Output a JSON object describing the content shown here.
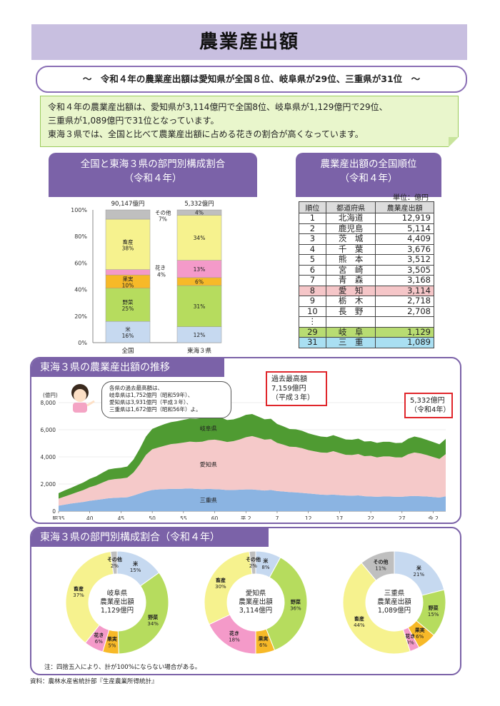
{
  "title": "農業産出額",
  "subtitle": "～　令和４年の農業産出額は愛知県が全国８位、岐阜県が29位、三重県が31位　～",
  "summary": {
    "line1": "令和４年の農業産出額は、愛知県が3,114億円で全国8位、岐阜県が1,129億円で29位、",
    "line2": "三重県が1,089億円で31位となっています。",
    "line3": "東海３県では、全国と比べて農業産出額に占める花きの割合が高くなっています。"
  },
  "sections": {
    "composition_title": "全国と東海３県の部門別構成割合",
    "composition_sub": "（令和４年）",
    "ranking_title": "農業産出額の全国順位",
    "ranking_sub": "（令和４年）",
    "trend_title": "東海３県の農業産出額の推移",
    "pies_title": "東海３県の部門別構成割合（令和４年）"
  },
  "ranking": {
    "unit": "単位：億円",
    "headers": [
      "順位",
      "都道府県",
      "農業産出額"
    ],
    "rows": [
      {
        "rank": "1",
        "pref": "北海道",
        "value": "12,919"
      },
      {
        "rank": "2",
        "pref": "鹿児島",
        "value": "5,114"
      },
      {
        "rank": "3",
        "pref": "茨　城",
        "value": "4,409"
      },
      {
        "rank": "4",
        "pref": "千　葉",
        "value": "3,676"
      },
      {
        "rank": "5",
        "pref": "熊　本",
        "value": "3,512"
      },
      {
        "rank": "6",
        "pref": "宮　崎",
        "value": "3,505"
      },
      {
        "rank": "7",
        "pref": "青　森",
        "value": "3,168"
      },
      {
        "rank": "8",
        "pref": "愛　知",
        "value": "3,114"
      },
      {
        "rank": "9",
        "pref": "栃　木",
        "value": "2,718"
      },
      {
        "rank": "10",
        "pref": "長　野",
        "value": "2,708"
      },
      {
        "rank": "⋮",
        "pref": "",
        "value": ""
      },
      {
        "rank": "29",
        "pref": "岐　阜",
        "value": "1,129"
      },
      {
        "rank": "31",
        "pref": "三　重",
        "value": "1,089"
      }
    ]
  },
  "trend_notes": {
    "speech": [
      "各県の過去最高額は、",
      "岐阜県は1,752億円（昭和59年）、",
      "愛知県は3,931億円（平成３年）、",
      "三重県は1,672億円（昭和56年）よ。"
    ],
    "peak": [
      "過去最高額",
      "7,159億円",
      "（平成３年）"
    ],
    "latest": [
      "5,332億円",
      "（令和4年）"
    ]
  },
  "pie_notes": {
    "rounding": "注：四捨五入により、計が100%にならない場合がある。",
    "source": "資料：農林水産省統計部『生産農業所得統計』"
  },
  "colors": {
    "rice": "#c6d9f0",
    "vegetables": "#b6dc5e",
    "fruit": "#f7b928",
    "flowers": "#f49ac9",
    "livestock": "#f6f28e",
    "other": "#bfbfbf",
    "aichi_area": "#f5c9c9",
    "gifu_area": "#4f9b32",
    "mie_area": "#8bb4e2"
  },
  "chart_data": [
    {
      "type": "bar",
      "stacked": true,
      "categories": [
        "全国",
        "東海３県"
      ],
      "totals": [
        "90,147億円",
        "5,332億円"
      ],
      "ylim": [
        0,
        100
      ],
      "ytick_labels": [
        "0%",
        "20%",
        "40%",
        "60%",
        "80%",
        "100%"
      ],
      "series": [
        {
          "name": "米",
          "values": [
            16,
            12
          ],
          "color_key": "rice"
        },
        {
          "name": "野菜",
          "values": [
            25,
            31
          ],
          "color_key": "vegetables"
        },
        {
          "name": "果実",
          "values": [
            10,
            6
          ],
          "color_key": "fruit"
        },
        {
          "name": "花き",
          "values": [
            4,
            13
          ],
          "color_key": "flowers"
        },
        {
          "name": "畜産",
          "values": [
            38,
            34
          ],
          "color_key": "livestock"
        },
        {
          "name": "その他",
          "values": [
            7,
            4
          ],
          "color_key": "other"
        }
      ],
      "data_labels": [
        [
          "16%",
          "12%"
        ],
        [
          "25%",
          "31%"
        ],
        [
          "10%",
          "6%"
        ],
        [
          "4%",
          "13%"
        ],
        [
          "38%",
          "34%"
        ],
        [
          "7%",
          "4%"
        ]
      ],
      "side_labels": {
        "livestock": "畜産",
        "vegetables": "野菜",
        "fruit": "果実",
        "rice": "米",
        "flowers": "花き",
        "other": "その他"
      }
    },
    {
      "type": "area",
      "stacked": true,
      "ylabel": "(億円)",
      "ylim": [
        0,
        8000
      ],
      "yticks": [
        0,
        2000,
        4000,
        6000,
        8000
      ],
      "ytick_labels": [
        "0",
        "2,000",
        "4,000",
        "6,000",
        "8,000"
      ],
      "xtick_labels": [
        "昭35",
        "40",
        "45",
        "50",
        "55",
        "60",
        "平.2",
        "7",
        "12",
        "17",
        "22",
        "27",
        "令.2"
      ],
      "x": [
        1960,
        1961,
        1962,
        1963,
        1964,
        1965,
        1966,
        1967,
        1968,
        1969,
        1970,
        1971,
        1972,
        1973,
        1974,
        1975,
        1976,
        1977,
        1978,
        1979,
        1980,
        1981,
        1982,
        1983,
        1984,
        1985,
        1986,
        1987,
        1988,
        1989,
        1990,
        1991,
        1992,
        1993,
        1994,
        1995,
        1996,
        1997,
        1998,
        1999,
        2000,
        2001,
        2002,
        2003,
        2004,
        2005,
        2006,
        2007,
        2008,
        2009,
        2010,
        2011,
        2012,
        2013,
        2014,
        2015,
        2016,
        2017,
        2018,
        2019,
        2020,
        2021,
        2022
      ],
      "series": [
        {
          "name": "三重県",
          "color_key": "mie_area",
          "values": [
            400,
            480,
            560,
            620,
            680,
            760,
            820,
            880,
            950,
            980,
            1000,
            1020,
            1150,
            1300,
            1450,
            1560,
            1600,
            1620,
            1640,
            1640,
            1650,
            1672,
            1640,
            1620,
            1640,
            1620,
            1600,
            1550,
            1560,
            1580,
            1600,
            1600,
            1560,
            1520,
            1560,
            1480,
            1450,
            1400,
            1380,
            1340,
            1300,
            1260,
            1220,
            1200,
            1220,
            1180,
            1150,
            1140,
            1160,
            1100,
            1080,
            1060,
            1080,
            1080,
            1060,
            1060,
            1100,
            1120,
            1100,
            1080,
            1040,
            1000,
            1089
          ]
        },
        {
          "name": "愛知県",
          "color_key": "aichi_area",
          "values": [
            520,
            600,
            680,
            780,
            880,
            1000,
            1080,
            1220,
            1340,
            1380,
            1400,
            1450,
            1700,
            2150,
            2700,
            3000,
            3100,
            3200,
            3300,
            3350,
            3400,
            3450,
            3450,
            3500,
            3600,
            3650,
            3600,
            3550,
            3600,
            3700,
            3850,
            3931,
            3850,
            3750,
            3750,
            3550,
            3450,
            3350,
            3350,
            3300,
            3200,
            3150,
            3100,
            3100,
            3200,
            3100,
            3000,
            3000,
            3050,
            2950,
            3000,
            2900,
            2950,
            2950,
            2900,
            2900,
            3100,
            3200,
            3150,
            3050,
            2950,
            2850,
            3114
          ]
        },
        {
          "name": "岐阜県",
          "color_key": "gifu_area",
          "values": [
            400,
            450,
            480,
            520,
            560,
            620,
            660,
            720,
            780,
            790,
            800,
            820,
            950,
            1150,
            1350,
            1500,
            1550,
            1600,
            1620,
            1640,
            1680,
            1700,
            1720,
            1740,
            1752,
            1740,
            1700,
            1620,
            1600,
            1620,
            1650,
            1628,
            1560,
            1500,
            1500,
            1400,
            1350,
            1300,
            1300,
            1280,
            1240,
            1200,
            1180,
            1160,
            1180,
            1160,
            1130,
            1120,
            1130,
            1080,
            1080,
            1070,
            1080,
            1080,
            1060,
            1080,
            1140,
            1180,
            1150,
            1120,
            1100,
            1080,
            1129
          ]
        }
      ]
    },
    {
      "type": "pie",
      "title": "岐阜県\n農業産出額\n1,129億円",
      "center_lines": [
        "岐阜県",
        "農業産出額",
        "1,129億円"
      ],
      "slices": [
        {
          "label": "米",
          "value": 15,
          "color_key": "rice"
        },
        {
          "label": "野菜",
          "value": 34,
          "color_key": "vegetables"
        },
        {
          "label": "果実",
          "value": 5,
          "color_key": "fruit"
        },
        {
          "label": "花き",
          "value": 6,
          "color_key": "flowers"
        },
        {
          "label": "畜産",
          "value": 37,
          "color_key": "livestock"
        },
        {
          "label": "その他",
          "value": 2,
          "color_key": "other"
        }
      ]
    },
    {
      "type": "pie",
      "center_lines": [
        "愛知県",
        "農業産出額",
        "3,114億円"
      ],
      "slices": [
        {
          "label": "米",
          "value": 8,
          "color_key": "rice"
        },
        {
          "label": "野菜",
          "value": 36,
          "color_key": "vegetables"
        },
        {
          "label": "果実",
          "value": 6,
          "color_key": "fruit"
        },
        {
          "label": "花き",
          "value": 18,
          "color_key": "flowers"
        },
        {
          "label": "畜産",
          "value": 30,
          "color_key": "livestock"
        },
        {
          "label": "その他",
          "value": 2,
          "color_key": "other"
        }
      ]
    },
    {
      "type": "pie",
      "center_lines": [
        "三重県",
        "農業産出額",
        "1,089億円"
      ],
      "slices": [
        {
          "label": "米",
          "value": 21,
          "color_key": "rice"
        },
        {
          "label": "野菜",
          "value": 15,
          "color_key": "vegetables"
        },
        {
          "label": "果実",
          "value": 6,
          "color_key": "fruit"
        },
        {
          "label": "花き",
          "value": 3,
          "color_key": "flowers"
        },
        {
          "label": "畜産",
          "value": 44,
          "color_key": "livestock"
        },
        {
          "label": "その他",
          "value": 11,
          "color_key": "other"
        }
      ]
    }
  ]
}
